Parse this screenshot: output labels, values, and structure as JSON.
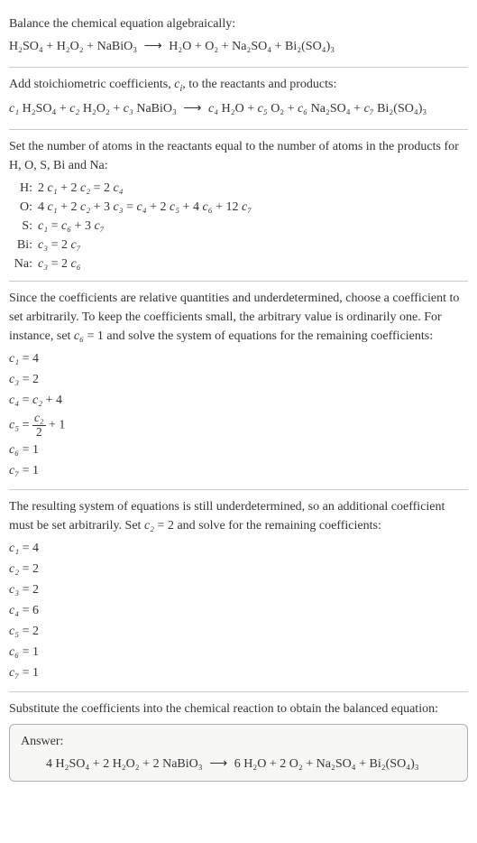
{
  "section1": {
    "prompt": "Balance the chemical equation algebraically:",
    "reactants": [
      "H₂SO₄",
      "H₂O₂",
      "NaBiO₃"
    ],
    "products": [
      "H₂O",
      "O₂",
      "Na₂SO₄",
      "Bi₂(SO₄)₃"
    ]
  },
  "section2": {
    "prompt_pre": "Add stoichiometric coefficients, ",
    "coeff_symbol": "c",
    "coeff_sub": "i",
    "prompt_post": ", to the reactants and products:",
    "lhs": [
      {
        "c": "c₁",
        "sp": "H₂SO₄"
      },
      {
        "c": "c₂",
        "sp": "H₂O₂"
      },
      {
        "c": "c₃",
        "sp": "NaBiO₃"
      }
    ],
    "rhs": [
      {
        "c": "c₄",
        "sp": "H₂O"
      },
      {
        "c": "c₅",
        "sp": "O₂"
      },
      {
        "c": "c₆",
        "sp": "Na₂SO₄"
      },
      {
        "c": "c₇",
        "sp": "Bi₂(SO₄)₃"
      }
    ]
  },
  "section3": {
    "prompt": "Set the number of atoms in the reactants equal to the number of atoms in the products for H, O, S, Bi and Na:",
    "rows": [
      {
        "el": "H:",
        "eq": [
          "2 ",
          "c₁",
          " + 2 ",
          "c₂",
          " = 2 ",
          "c₄"
        ]
      },
      {
        "el": "O:",
        "eq": [
          "4 ",
          "c₁",
          " + 2 ",
          "c₂",
          " + 3 ",
          "c₃",
          " = ",
          "c₄",
          " + 2 ",
          "c₅",
          " + 4 ",
          "c₆",
          " + 12 ",
          "c₇"
        ]
      },
      {
        "el": "S:",
        "eq": [
          "",
          "c₁",
          " = ",
          "c₆",
          " + 3 ",
          "c₇"
        ]
      },
      {
        "el": "Bi:",
        "eq": [
          "",
          "c₃",
          " = 2 ",
          "c₇"
        ]
      },
      {
        "el": "Na:",
        "eq": [
          "",
          "c₃",
          " = 2 ",
          "c₆"
        ]
      }
    ]
  },
  "section4": {
    "prompt_parts": [
      "Since the coefficients are relative quantities and underdetermined, choose a coefficient to set arbitrarily. To keep the coefficients small, the arbitrary value is ordinarily one. For instance, set ",
      "c₆",
      " = 1 and solve the system of equations for the remaining coefficients:"
    ],
    "coeffs": [
      {
        "lhs": "c₁",
        "rhs": " = 4"
      },
      {
        "lhs": "c₃",
        "rhs": " = 2"
      },
      {
        "lhs": "c₄",
        "rhs_pre": " = ",
        "rhs_var": "c₂",
        "rhs_post": " + 4"
      },
      {
        "lhs": "c₅",
        "frac_num": "c₂",
        "frac_den": "2",
        "rhs_post": " + 1"
      },
      {
        "lhs": "c₆",
        "rhs": " = 1"
      },
      {
        "lhs": "c₇",
        "rhs": " = 1"
      }
    ]
  },
  "section5": {
    "prompt_parts": [
      "The resulting system of equations is still underdetermined, so an additional coefficient must be set arbitrarily. Set ",
      "c₂",
      " = 2 and solve for the remaining coefficients:"
    ],
    "coeffs": [
      {
        "lhs": "c₁",
        "rhs": " = 4"
      },
      {
        "lhs": "c₂",
        "rhs": " = 2"
      },
      {
        "lhs": "c₃",
        "rhs": " = 2"
      },
      {
        "lhs": "c₄",
        "rhs": " = 6"
      },
      {
        "lhs": "c₅",
        "rhs": " = 2"
      },
      {
        "lhs": "c₆",
        "rhs": " = 1"
      },
      {
        "lhs": "c₇",
        "rhs": " = 1"
      }
    ]
  },
  "section6": {
    "prompt": "Substitute the coefficients into the chemical reaction to obtain the balanced equation:",
    "answer_label": "Answer:",
    "lhs": [
      {
        "n": "4",
        "sp": "H₂SO₄"
      },
      {
        "n": "2",
        "sp": "H₂O₂"
      },
      {
        "n": "2",
        "sp": "NaBiO₃"
      }
    ],
    "rhs": [
      {
        "n": "6",
        "sp": "H₂O"
      },
      {
        "n": "2",
        "sp": "O₂"
      },
      {
        "n": "",
        "sp": "Na₂SO₄"
      },
      {
        "n": "",
        "sp": "Bi₂(SO₄)₃"
      }
    ]
  },
  "arrow": "⟶",
  "colors": {
    "text": "#333333",
    "border": "#cccccc",
    "answer_bg": "#f7f7f5",
    "answer_border": "#b0b0b0"
  }
}
